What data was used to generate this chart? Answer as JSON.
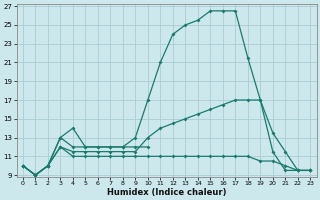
{
  "xlabel": "Humidex (Indice chaleur)",
  "bg_color": "#cce8ec",
  "grid_color": "#aaccd4",
  "line_color": "#1a7a6e",
  "xlim": [
    0,
    23
  ],
  "ylim": [
    9,
    27
  ],
  "xticks": [
    0,
    1,
    2,
    3,
    4,
    5,
    6,
    7,
    8,
    9,
    10,
    11,
    12,
    13,
    14,
    15,
    16,
    17,
    18,
    19,
    20,
    21,
    22,
    23
  ],
  "yticks": [
    9,
    11,
    13,
    15,
    17,
    19,
    21,
    23,
    25,
    27
  ],
  "lines": [
    {
      "x": [
        0,
        1,
        2,
        3,
        4,
        5,
        6,
        7,
        8,
        9,
        10,
        11,
        12,
        13,
        14,
        15,
        16,
        17,
        18,
        19,
        20,
        21,
        22,
        23
      ],
      "y": [
        10,
        9,
        10,
        13,
        12,
        12,
        12,
        12,
        12,
        13,
        17,
        21,
        24,
        25,
        25.5,
        26.5,
        26.5,
        26.5,
        21.5,
        17,
        11.5,
        9.5,
        9.5,
        9.5
      ]
    },
    {
      "x": [
        0,
        1,
        2,
        3,
        4,
        5,
        6,
        7,
        8,
        9,
        10,
        11,
        12,
        13,
        14,
        15,
        16,
        17,
        18,
        19,
        20,
        21,
        22,
        23
      ],
      "y": [
        10,
        9,
        10,
        12,
        11.5,
        11.5,
        11.5,
        11.5,
        11.5,
        11.5,
        13,
        14,
        14.5,
        15,
        15.5,
        16,
        16.5,
        17,
        17,
        17,
        13.5,
        11.5,
        9.5,
        9.5
      ]
    },
    {
      "x": [
        0,
        1,
        2,
        3,
        4,
        5,
        6,
        7,
        8,
        9,
        10
      ],
      "y": [
        10,
        9,
        10,
        13,
        14,
        12,
        12,
        12,
        12,
        12,
        12
      ]
    },
    {
      "x": [
        0,
        1,
        2,
        3,
        4,
        5,
        6,
        7,
        8,
        9,
        10,
        11,
        12,
        13,
        14,
        15,
        16,
        17,
        18,
        19,
        20,
        21,
        22,
        23
      ],
      "y": [
        10,
        9,
        10,
        12,
        11,
        11,
        11,
        11,
        11,
        11,
        11,
        11,
        11,
        11,
        11,
        11,
        11,
        11,
        11,
        10.5,
        10.5,
        10,
        9.5,
        9.5
      ]
    }
  ]
}
